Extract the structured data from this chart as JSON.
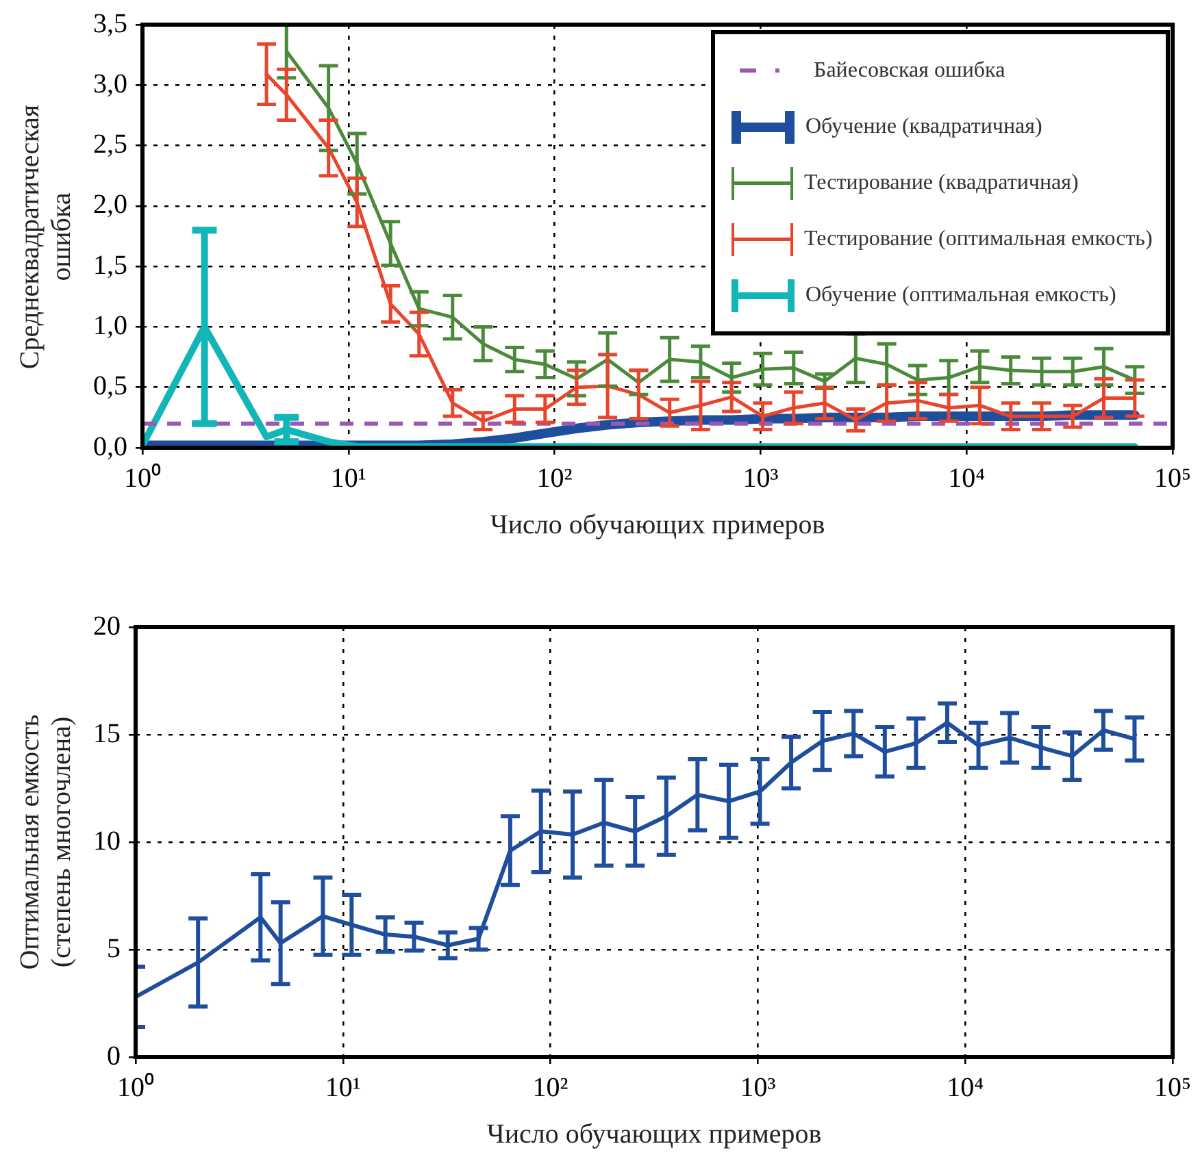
{
  "chart_data": [
    {
      "type": "line",
      "xlabel": "Число обучающих примеров",
      "ylabel": "Среднеквадратическая ошибка",
      "log": "x",
      "grid": true,
      "legend": "top right",
      "marker": "none",
      "x": [
        1,
        2,
        4,
        5,
        8,
        11,
        16,
        22,
        32,
        45,
        64,
        90,
        128,
        181,
        256,
        362,
        512,
        724,
        1024,
        1448,
        2048,
        2896,
        4096,
        5793,
        8192,
        11585,
        16384,
        23170,
        32768,
        46341,
        65536
      ],
      "xlim": [
        1,
        100000
      ],
      "xticks": [
        {
          "value": 1,
          "label": "10⁰"
        },
        {
          "value": 10,
          "label": "10¹"
        },
        {
          "value": 100,
          "label": "10²"
        },
        {
          "value": 1000,
          "label": "10³"
        },
        {
          "value": 10000,
          "label": "10⁴"
        },
        {
          "value": 100000,
          "label": "10⁵"
        }
      ],
      "ylim": [
        0,
        3.5
      ],
      "yticks": [
        {
          "value": 0,
          "label": "0,0"
        },
        {
          "value": 0.5,
          "label": "0,5"
        },
        {
          "value": 1,
          "label": "1,0"
        },
        {
          "value": 1.5,
          "label": "1,5"
        },
        {
          "value": 2,
          "label": "2,0"
        },
        {
          "value": 2.5,
          "label": "2,5"
        },
        {
          "value": 3,
          "label": "3,0"
        },
        {
          "value": 3.5,
          "label": "3,5"
        }
      ],
      "ref_lines": [
        {
          "axis": "y",
          "value": 0.2,
          "label": "Байесовская ошибка",
          "color": "#9b59b6",
          "line_style": "dashed"
        }
      ],
      "series": [
        {
          "name": "Обучение (квадратичная)",
          "color": "#1f4e9c",
          "values": [
            0.02,
            0.02,
            0.02,
            0.02,
            0.02,
            0.02,
            0.02,
            0.02,
            0.03,
            0.05,
            0.08,
            0.12,
            0.16,
            0.19,
            0.21,
            0.22,
            0.23,
            0.23,
            0.24,
            0.24,
            0.25,
            0.25,
            0.25,
            0.26,
            0.26,
            0.26,
            0.26,
            0.26,
            0.27,
            0.27,
            0.27
          ]
        },
        {
          "name": "Тестирование (квадратичная)",
          "color": "#4b8a3a",
          "values": [
            null,
            null,
            null,
            3.28,
            2.81,
            2.35,
            1.69,
            1.15,
            1.08,
            0.86,
            0.73,
            0.69,
            0.57,
            0.73,
            0.54,
            0.73,
            0.71,
            0.58,
            0.65,
            0.66,
            0.55,
            0.74,
            0.69,
            0.56,
            0.58,
            0.67,
            0.64,
            0.63,
            0.63,
            0.67,
            0.56
          ],
          "errors": [
            null,
            null,
            null,
            0.22,
            0.35,
            0.25,
            0.18,
            0.14,
            0.18,
            0.14,
            0.1,
            0.11,
            0.14,
            0.22,
            0.1,
            0.18,
            0.13,
            0.12,
            0.13,
            0.13,
            0.06,
            0.2,
            0.17,
            0.12,
            0.14,
            0.13,
            0.11,
            0.11,
            0.11,
            0.15,
            0.11
          ]
        },
        {
          "name": "Тестирование (оптимальная емкость)",
          "color": "#e8452c",
          "values": [
            null,
            null,
            3.09,
            2.92,
            2.48,
            2.03,
            1.19,
            0.94,
            0.37,
            0.22,
            0.32,
            0.32,
            0.5,
            0.51,
            0.44,
            0.29,
            0.35,
            0.42,
            0.26,
            0.33,
            0.37,
            0.23,
            0.37,
            0.39,
            0.33,
            0.35,
            0.26,
            0.26,
            0.26,
            0.41,
            0.41
          ],
          "errors": [
            null,
            null,
            0.25,
            0.21,
            0.23,
            0.2,
            0.15,
            0.18,
            0.11,
            0.07,
            0.11,
            0.11,
            0.14,
            0.26,
            0.2,
            0.11,
            0.2,
            0.12,
            0.11,
            0.13,
            0.13,
            0.09,
            0.15,
            0.15,
            0.11,
            0.15,
            0.11,
            0.11,
            0.09,
            0.16,
            0.15
          ]
        },
        {
          "name": "Обучение (оптимальная емкость)",
          "color": "#12b5b8",
          "values": [
            0.02,
            1.0,
            0.09,
            0.15,
            0.05,
            0.01,
            0.01,
            0.01,
            0.01,
            0.01,
            0.01,
            0.01,
            0.01,
            0.01,
            0.01,
            0.01,
            0.01,
            0.01,
            0.01,
            0.01,
            0.01,
            0.01,
            0.01,
            0.01,
            0.01,
            0.01,
            0.01,
            0.01,
            0.01,
            0.01,
            0.01
          ],
          "errors": [
            null,
            0.8,
            null,
            0.1,
            null,
            null,
            null,
            null,
            null,
            null,
            null,
            null,
            null,
            null,
            null,
            null,
            null,
            null,
            null,
            null,
            null,
            null,
            null,
            null,
            null,
            null,
            null,
            null,
            null,
            null,
            null
          ]
        }
      ]
    },
    {
      "type": "line",
      "xlabel": "Число обучающих примеров",
      "ylabel": "Оптимальная емкость (степень многочлена)",
      "log": "x",
      "grid": true,
      "marker": "none",
      "x": [
        1,
        2,
        4,
        5,
        8,
        11,
        16,
        22,
        32,
        45,
        64,
        90,
        128,
        181,
        256,
        362,
        512,
        724,
        1024,
        1448,
        2048,
        2896,
        4096,
        5793,
        8192,
        11585,
        16384,
        23170,
        32768,
        46341,
        65536
      ],
      "xlim": [
        1,
        100000
      ],
      "xticks": [
        {
          "value": 1,
          "label": "10⁰"
        },
        {
          "value": 10,
          "label": "10¹"
        },
        {
          "value": 100,
          "label": "10²"
        },
        {
          "value": 1000,
          "label": "10³"
        },
        {
          "value": 10000,
          "label": "10⁴"
        },
        {
          "value": 100000,
          "label": "10⁵"
        }
      ],
      "ylim": [
        0,
        20
      ],
      "yticks": [
        0,
        5,
        10,
        15,
        20
      ],
      "series": [
        {
          "color": "#1f4e9c",
          "values": [
            2.8,
            4.4,
            6.5,
            5.3,
            6.55,
            6.15,
            5.7,
            5.6,
            5.2,
            5.5,
            9.6,
            10.5,
            10.35,
            10.9,
            10.5,
            11.2,
            12.2,
            11.9,
            12.35,
            13.7,
            14.7,
            15.05,
            14.2,
            14.6,
            15.55,
            14.5,
            14.85,
            14.4,
            14.0,
            15.2,
            14.8
          ],
          "errors": [
            1.4,
            2.05,
            2,
            1.9,
            1.8,
            1.4,
            0.8,
            0.65,
            0.6,
            0.5,
            1.6,
            1.9,
            2,
            2,
            1.6,
            1.8,
            1.65,
            1.7,
            1.5,
            1.2,
            1.35,
            1.05,
            1.15,
            1.15,
            0.9,
            1.05,
            1.15,
            0.95,
            1.1,
            0.9,
            1.0
          ]
        }
      ]
    }
  ]
}
